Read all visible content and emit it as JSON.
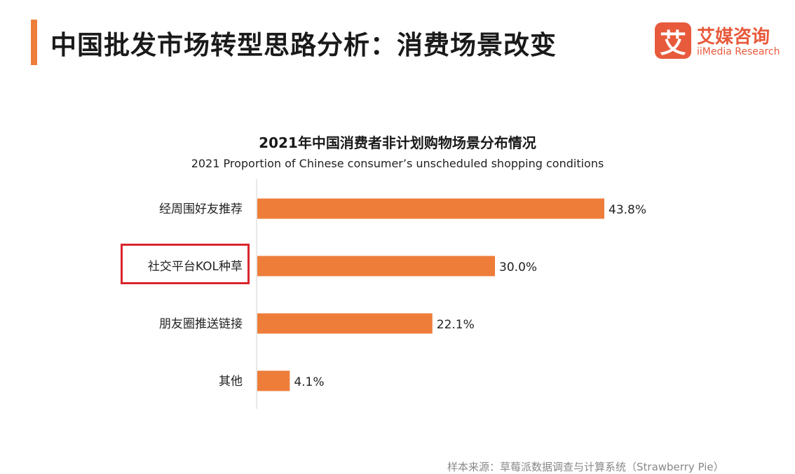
{
  "header": {
    "title": "中国批发市场转型思路分析：消费场景改变",
    "accent_color": "#ee7d3a"
  },
  "logo": {
    "mark": "艾",
    "name_cn": "艾媒咨询",
    "name_en": "iiMedia Research",
    "color": "#e85a3c"
  },
  "chart_data": {
    "type": "bar",
    "orientation": "horizontal",
    "title": "2021年中国消费者非计划购物场景分布情况",
    "subtitle": "2021 Proportion of Chinese consumer’s unscheduled shopping conditions",
    "categories": [
      "经周围好友推荐",
      "社交平台KOL种草",
      "朋友圈推送链接",
      "其他"
    ],
    "values": [
      43.8,
      30.0,
      22.1,
      4.1
    ],
    "value_labels": [
      "43.8%",
      "30.0%",
      "22.1%",
      "4.1%"
    ],
    "unit": "%",
    "bar_color": "#ee7d3a",
    "xlim": [
      0,
      43.8
    ],
    "grid": false,
    "legend": "none",
    "highlighted_category": "社交平台KOL种草",
    "highlight_color": "#d9262e"
  },
  "footer": {
    "source": "样本来源：草莓派数据调查与计算系统（Strawberry Pie）"
  }
}
